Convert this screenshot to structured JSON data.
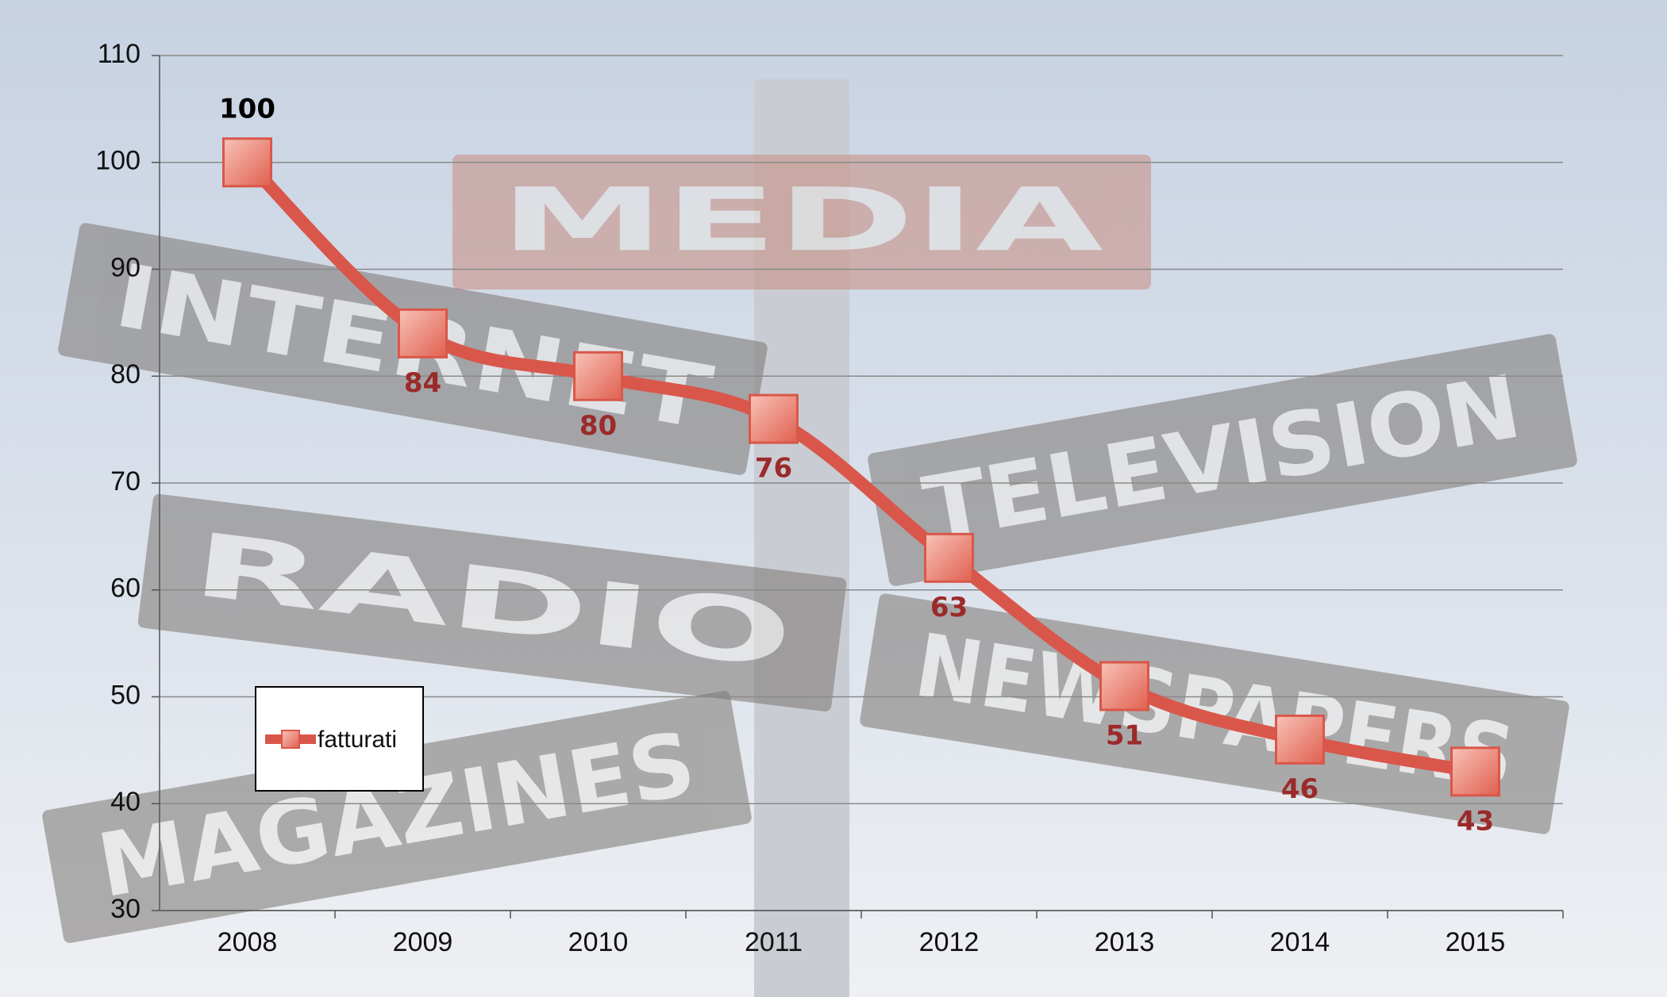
{
  "chart_data": {
    "type": "line",
    "categories": [
      "2008",
      "2009",
      "2010",
      "2011",
      "2012",
      "2013",
      "2014",
      "2015"
    ],
    "series": [
      {
        "name": "fatturati",
        "color": "#d9574a",
        "values": [
          100,
          84,
          80,
          76,
          63,
          51,
          46,
          43
        ]
      }
    ],
    "ylim": [
      30,
      110
    ],
    "yticks": [
      30,
      40,
      50,
      60,
      70,
      80,
      90,
      100,
      110
    ],
    "grid": true,
    "legend": "left"
  },
  "background_signs": [
    "MEDIA",
    "INTERNET",
    "TELEVISION",
    "RADIO",
    "NEWSPAPERS",
    "MAGAZINES"
  ]
}
